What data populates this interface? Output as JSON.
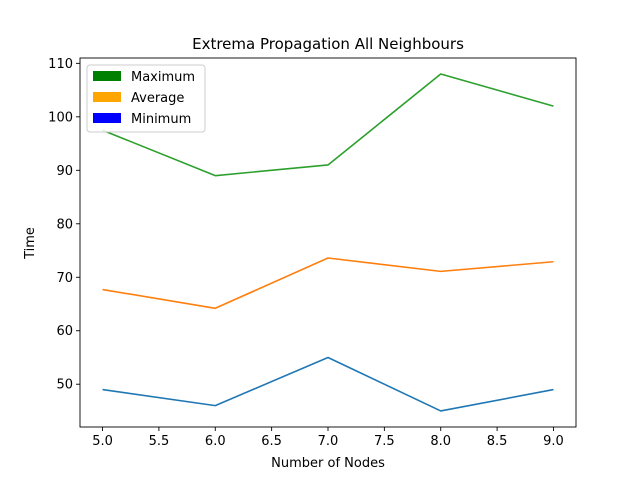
{
  "chart_data": {
    "type": "line",
    "title": "Extrema Propagation All Neighbours",
    "xlabel": "Number of Nodes",
    "ylabel": "Time",
    "x": [
      5.0,
      6.0,
      7.0,
      8.0,
      9.0
    ],
    "xlim": [
      4.8,
      9.2
    ],
    "ylim": [
      42.0,
      111.0
    ],
    "xticks": [
      5.0,
      5.5,
      6.0,
      6.5,
      7.0,
      7.5,
      8.0,
      8.5,
      9.0
    ],
    "xtick_labels": [
      "5.0",
      "5.5",
      "6.0",
      "6.5",
      "7.0",
      "7.5",
      "8.0",
      "8.5",
      "9.0"
    ],
    "yticks": [
      50,
      60,
      70,
      80,
      90,
      100,
      110
    ],
    "ytick_labels": [
      "50",
      "60",
      "70",
      "80",
      "90",
      "100",
      "110"
    ],
    "grid": false,
    "legend_position": "upper-left",
    "series": [
      {
        "name": "Maximum",
        "color": "#2ca02c",
        "values": [
          97.5,
          89.0,
          91.0,
          108.0,
          102.0
        ]
      },
      {
        "name": "Average",
        "color": "#ff7f0e",
        "values": [
          67.7,
          64.2,
          73.6,
          71.1,
          72.9
        ]
      },
      {
        "name": "Minimum",
        "color": "#1f77b4",
        "values": [
          49.0,
          46.0,
          55.0,
          45.0,
          49.0
        ]
      }
    ],
    "legend": [
      {
        "label": "Maximum",
        "color": "#008000"
      },
      {
        "label": "Average",
        "color": "#ffa500"
      },
      {
        "label": "Minimum",
        "color": "#0000ff"
      }
    ]
  }
}
